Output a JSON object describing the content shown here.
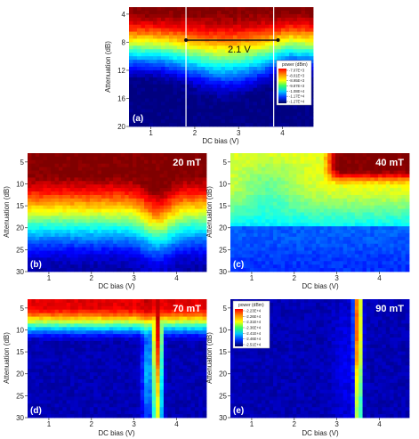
{
  "chart_data": [
    {
      "id": "a",
      "type": "heatmap",
      "panel_label": "(a)",
      "field_label": "",
      "xlabel": "DC bias (V)",
      "ylabel": "Attenuation (dB)",
      "xlim": [
        0.5,
        4.7
      ],
      "ylim": [
        20,
        3
      ],
      "xticks": [
        1,
        2,
        3,
        4
      ],
      "yticks": [
        4,
        8,
        12,
        16,
        20
      ],
      "annotation": {
        "text": "2.1 V",
        "x_start": 1.8,
        "x_end": 3.9,
        "y": 7.7
      },
      "vlines": [
        1.8,
        3.8
      ],
      "colorbar": {
        "title": "power (dBm)",
        "ticks": [
          "-7.07E+3",
          "-8.01E+3",
          "-8.95E+3",
          "-9.87E+3",
          "-1.08E+4",
          "-1.17E+4",
          "-1.27E+4"
        ]
      }
    },
    {
      "id": "b",
      "type": "heatmap",
      "panel_label": "(b)",
      "field_label": "20 mT",
      "xlabel": "DC bias (V)",
      "ylabel": "Attenuation (dB)",
      "xlim": [
        0.5,
        4.7
      ],
      "ylim": [
        30,
        3
      ],
      "xticks": [
        1,
        2,
        3,
        4
      ],
      "yticks": [
        5,
        10,
        15,
        20,
        25,
        30
      ]
    },
    {
      "id": "c",
      "type": "heatmap",
      "panel_label": "(c)",
      "field_label": "40 mT",
      "xlabel": "DC bias (V)",
      "ylabel": "Attenuation (dB)",
      "xlim": [
        0.5,
        4.7
      ],
      "ylim": [
        30,
        3
      ],
      "xticks": [
        1,
        2,
        3,
        4
      ],
      "yticks": [
        5,
        10,
        15,
        20,
        25,
        30
      ]
    },
    {
      "id": "d",
      "type": "heatmap",
      "panel_label": "(d)",
      "field_label": "70 mT",
      "xlabel": "DC bias (V)",
      "ylabel": "Attenuation (dB)",
      "xlim": [
        0.5,
        4.7
      ],
      "ylim": [
        30,
        3
      ],
      "xticks": [
        1,
        2,
        3,
        4
      ],
      "yticks": [
        5,
        10,
        15,
        20,
        25,
        30
      ]
    },
    {
      "id": "e",
      "type": "heatmap",
      "panel_label": "(e)",
      "field_label": "90 mT",
      "xlabel": "DC bias (V)",
      "ylabel": "Attenuation (dB)",
      "xlim": [
        0.5,
        4.7
      ],
      "ylim": [
        30,
        3
      ],
      "xticks": [
        1,
        2,
        3,
        4
      ],
      "yticks": [
        5,
        10,
        15,
        20,
        25,
        30
      ],
      "colorbar": {
        "title": "power (dBm)",
        "ticks": [
          "-2.23E+4",
          "-2.26E+4",
          "-2.31E+4",
          "-2.36E+4",
          "-2.41E+4",
          "-2.46E+4",
          "-2.51E+4"
        ]
      }
    }
  ]
}
